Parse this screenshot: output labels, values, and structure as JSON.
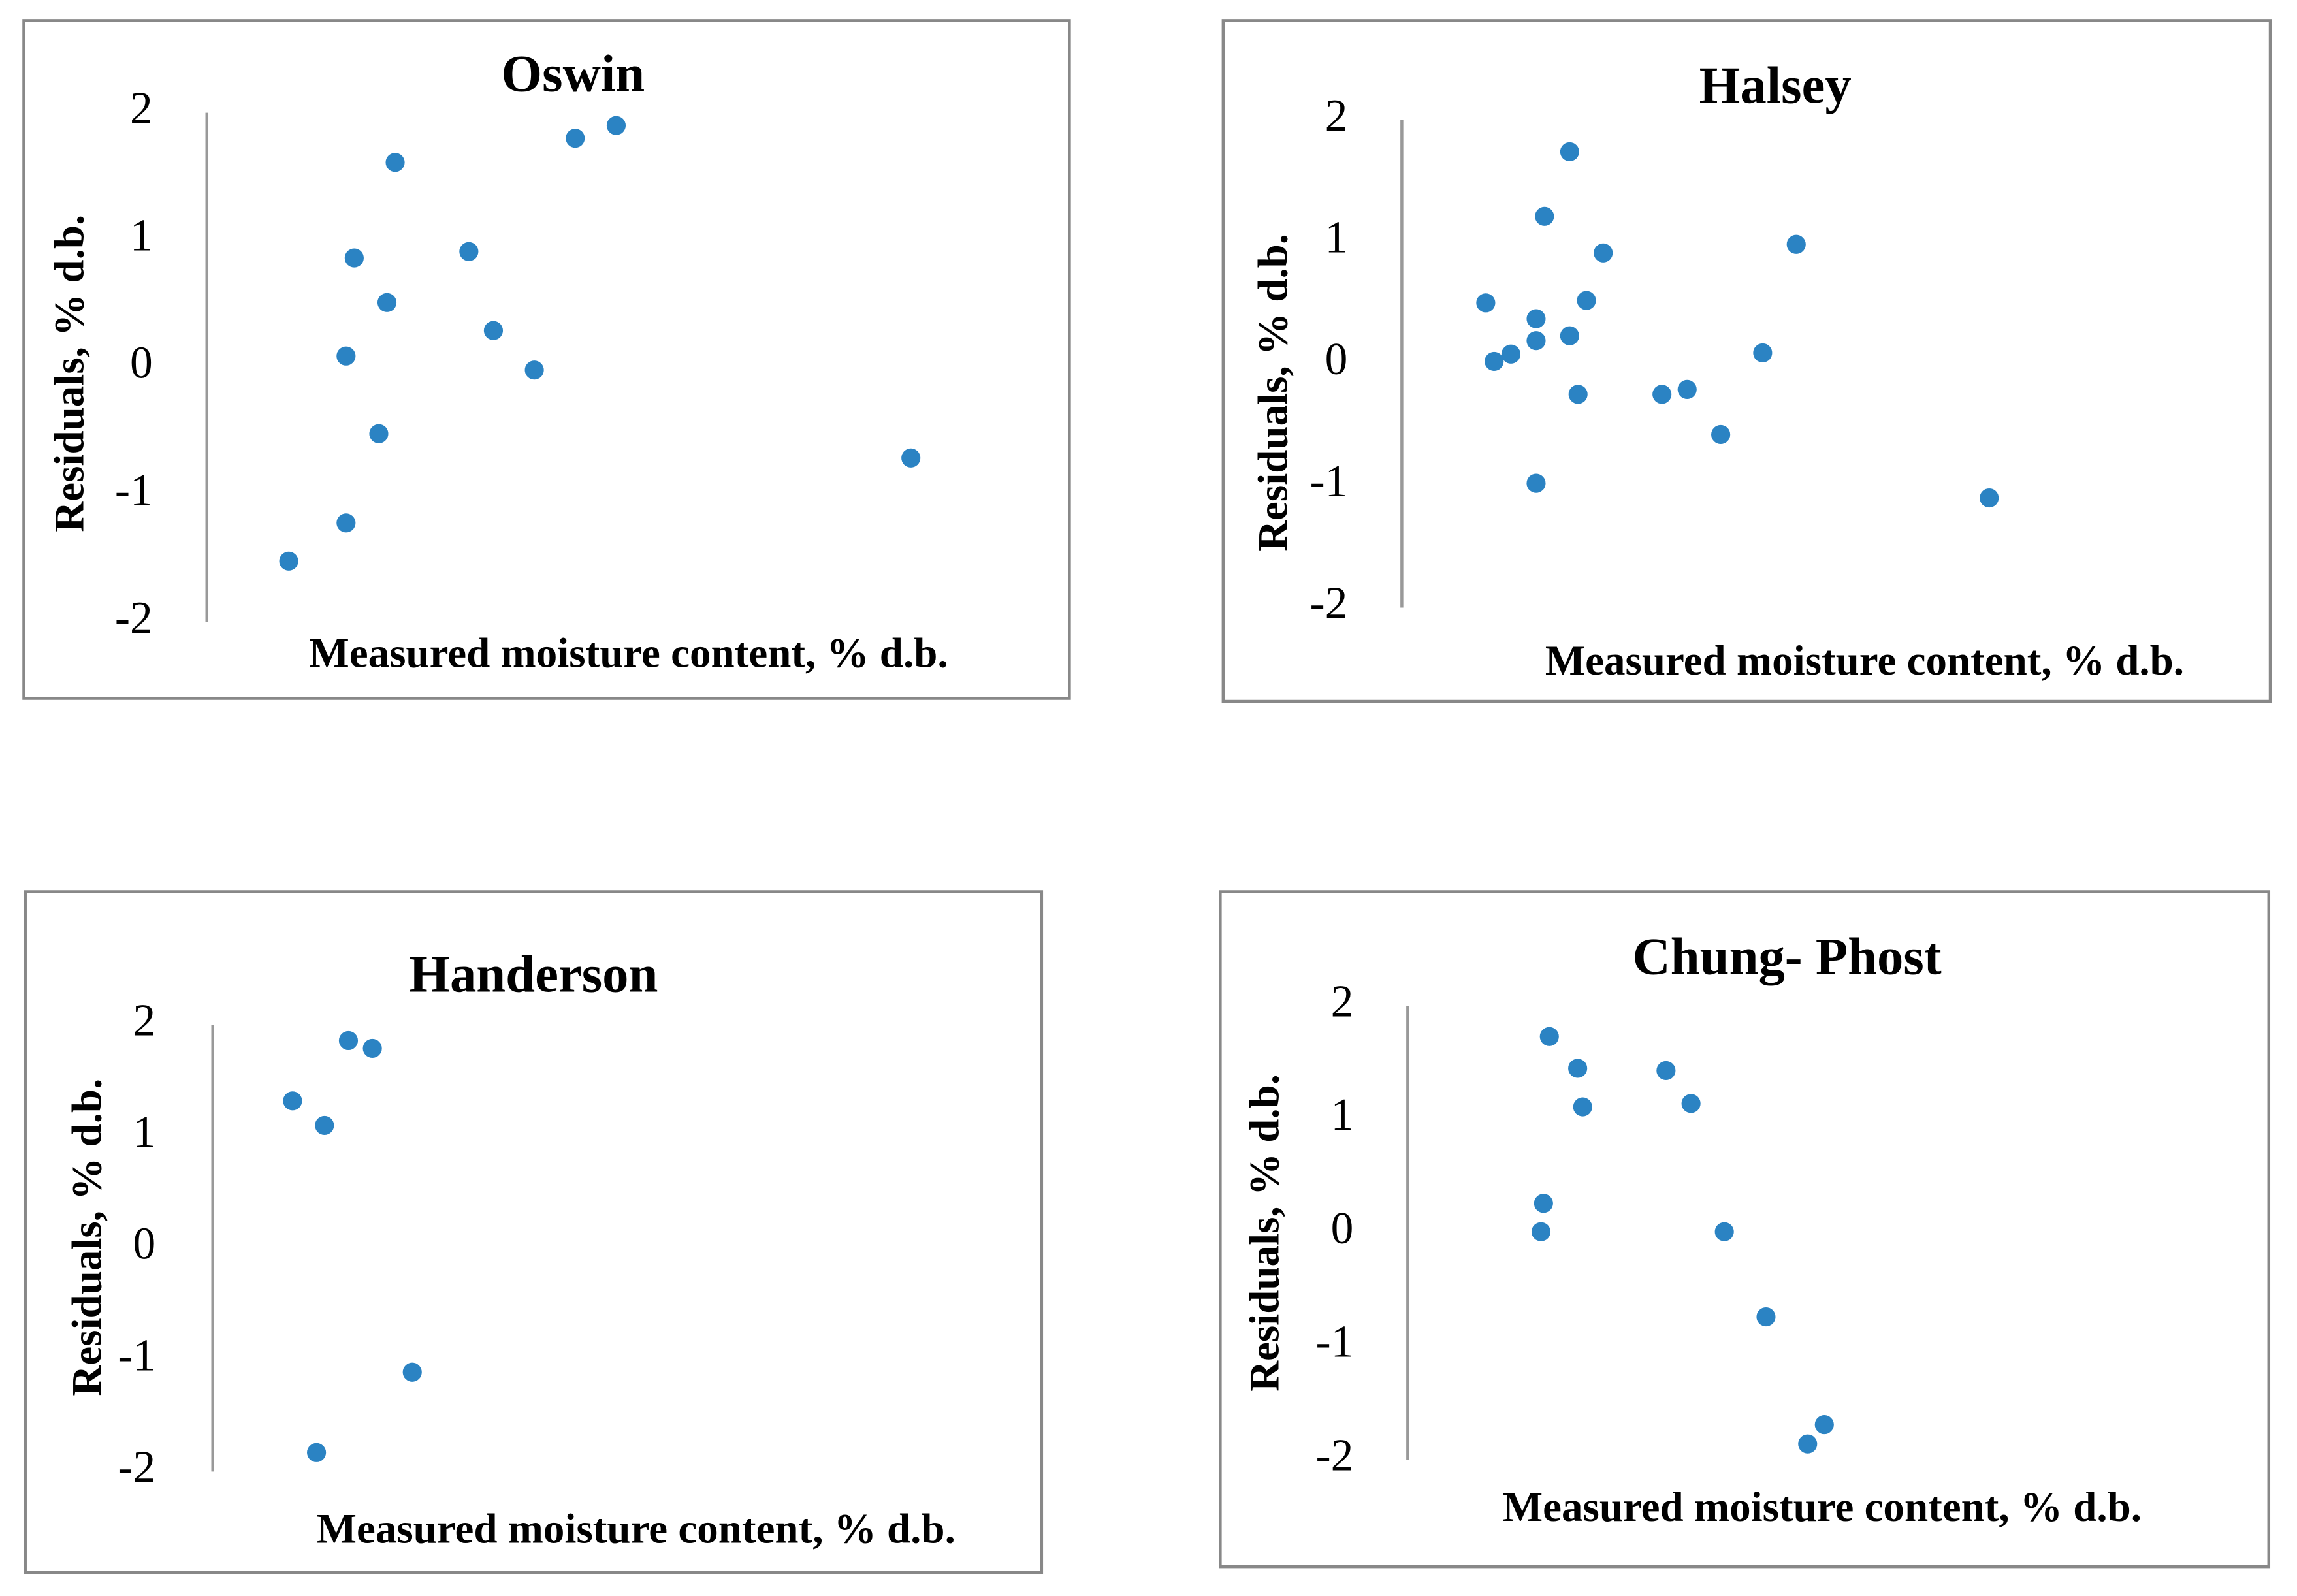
{
  "chart_data": [
    {
      "type": "scatter",
      "title": "Oswin",
      "x_label": "Measured moisture content, % d.b.",
      "y_label": "Residuals, % d.b.",
      "color": "#2b83c3",
      "x": [
        10,
        17,
        17,
        18,
        21,
        22,
        23,
        32,
        35,
        40,
        45,
        50,
        86
      ],
      "values": [
        -1.52,
        -1.22,
        0.09,
        0.86,
        -0.52,
        0.51,
        1.61,
        0.91,
        0.29,
        -0.02,
        1.8,
        1.9,
        -0.71
      ],
      "xlim": [
        0,
        100
      ],
      "ylim": [
        -2,
        2
      ],
      "yticks": [
        -2,
        -1,
        0,
        1,
        2
      ]
    },
    {
      "type": "scatter",
      "title": "Halsey",
      "x_label": "Measured moisture content, % d.b.",
      "y_label": "Residuals, % d.b.",
      "color": "#2b83c3",
      "x": [
        10,
        11,
        13,
        16,
        16,
        16,
        17,
        20,
        20,
        21,
        22,
        24,
        31,
        34,
        38,
        43,
        47,
        70
      ],
      "values": [
        0.5,
        0.02,
        0.08,
        -0.98,
        0.19,
        0.37,
        1.21,
        0.23,
        1.74,
        -0.25,
        0.52,
        0.91,
        -0.25,
        -0.21,
        -0.58,
        0.09,
        0.98,
        -1.1
      ],
      "xlim": [
        0,
        100
      ],
      "ylim": [
        -2,
        2
      ],
      "yticks": [
        -2,
        -1,
        0,
        1,
        2
      ]
    },
    {
      "type": "scatter",
      "title": "Handerson",
      "x_label": "Measured moisture content, % d.b.",
      "y_label": "Residuals, % d.b.",
      "color": "#2b83c3",
      "x": [
        10,
        13,
        14,
        17,
        20,
        25
      ],
      "values": [
        1.32,
        -1.83,
        1.1,
        1.86,
        1.79,
        -1.11
      ],
      "xlim": [
        0,
        100
      ],
      "ylim": [
        -2,
        2
      ],
      "yticks": [
        -2,
        -1,
        0,
        1,
        2
      ]
    },
    {
      "type": "scatter",
      "title": "Chung- Phost",
      "x_label": "Measured moisture content, % d.b.",
      "y_label": "Residuals, % d.b.",
      "color": "#2b83c3",
      "x": [
        16,
        16.3,
        17,
        20.4,
        21,
        31,
        34,
        38,
        43,
        48,
        50
      ],
      "values": [
        0.01,
        0.26,
        1.73,
        1.45,
        1.11,
        1.43,
        1.14,
        0.01,
        -0.74,
        -1.86,
        -1.69
      ],
      "xlim": [
        0,
        100
      ],
      "ylim": [
        -2,
        2
      ],
      "yticks": [
        -2,
        -1,
        0,
        1,
        2
      ]
    }
  ]
}
